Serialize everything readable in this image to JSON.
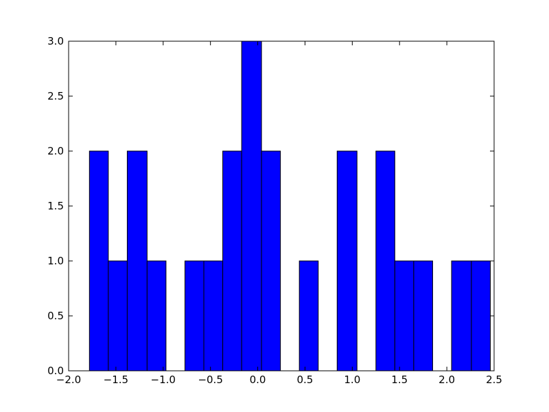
{
  "chart_data": {
    "type": "histogram",
    "color": "#0000ff",
    "bins": [
      -1.78,
      -1.58,
      -1.38,
      -1.17,
      -0.97,
      -0.77,
      -0.57,
      -0.37,
      -0.17,
      0.04,
      0.24,
      0.44,
      0.64,
      0.84,
      1.05,
      1.25,
      1.45,
      1.65,
      1.85,
      2.05,
      2.26,
      2.46
    ],
    "values": [
      2,
      1,
      2,
      1,
      0,
      1,
      1,
      2,
      3,
      2,
      0,
      1,
      0,
      2,
      0,
      2,
      1,
      1,
      0,
      1,
      1
    ],
    "xlim": [
      -2.0,
      2.5
    ],
    "xticks": [
      {
        "value": -2.0,
        "label": "−2.0"
      },
      {
        "value": -1.5,
        "label": "−1.5"
      },
      {
        "value": -1.0,
        "label": "−1.0"
      },
      {
        "value": -0.5,
        "label": "−0.5"
      },
      {
        "value": 0.0,
        "label": "0.0"
      },
      0.5,
      {
        "value": 1.0,
        "label": "1.0"
      },
      1.5,
      {
        "value": 2.0,
        "label": "2.0"
      },
      2.5
    ],
    "ylim": [
      0,
      3.0
    ],
    "yticks": [
      {
        "value": 0,
        "label": "0.0"
      },
      0.5,
      {
        "value": 1.0,
        "label": "1.0"
      },
      1.5,
      {
        "value": 2.0,
        "label": "2.0"
      },
      2.5,
      {
        "value": 3.0,
        "label": "3.0"
      }
    ]
  }
}
